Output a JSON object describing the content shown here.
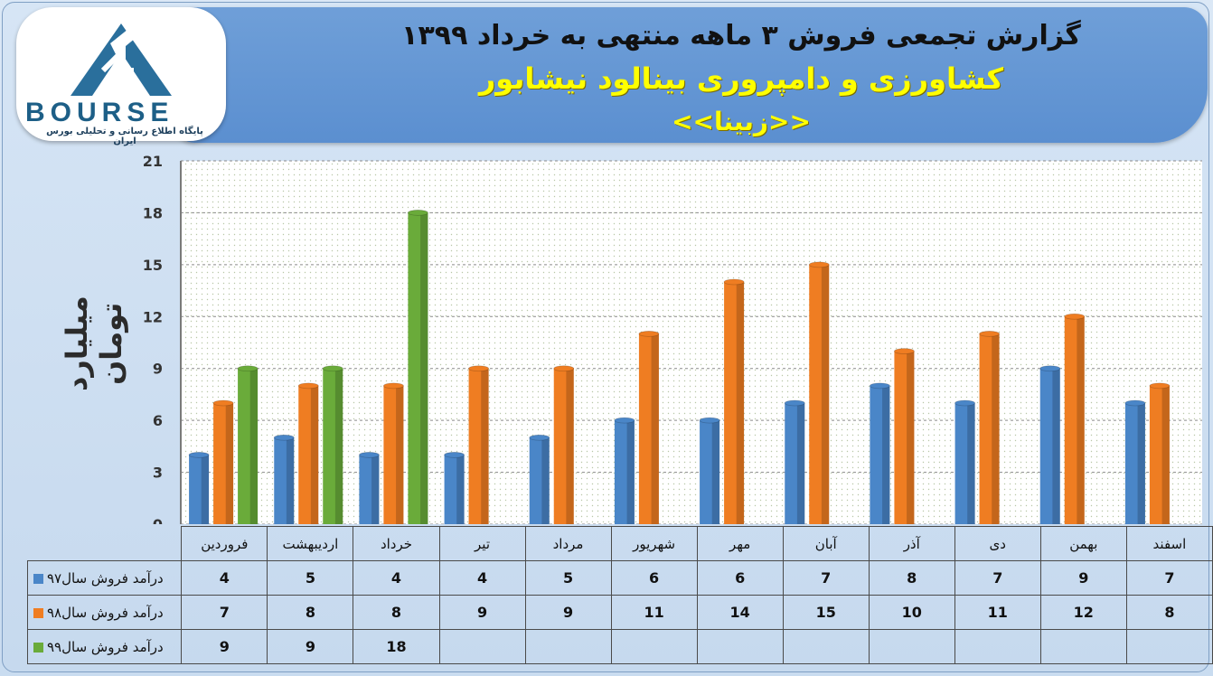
{
  "header": {
    "title_line1": "گزارش تجمعی فروش ۳ ماهه منتهی به خرداد ۱۳۹۹",
    "title_line2": "کشاورزی و دامپروری بینالود نیشابور",
    "title_line3": "<<زبینا>>"
  },
  "logo": {
    "word": "BOURSE",
    "subtitle": "پایگاه اطلاع رسانی و تحلیلی بورس ایران"
  },
  "colors": {
    "series97": "#4a86c8",
    "series98": "#ef7d22",
    "series99": "#6aab3a"
  },
  "chart_data": {
    "type": "bar",
    "ylabel": "میلیارد تومان",
    "ylim": [
      0,
      21
    ],
    "yticks": [
      "0",
      "3",
      "6",
      "9",
      "12",
      "15",
      "18",
      "21"
    ],
    "categories": [
      "فروردین",
      "اردیبهشت",
      "خرداد",
      "تیر",
      "مرداد",
      "شهریور",
      "مهر",
      "آبان",
      "آذر",
      "دی",
      "بهمن",
      "اسفند"
    ],
    "series": [
      {
        "name": "درآمد فروش سال۹۷",
        "values": [
          4,
          5,
          4,
          4,
          5,
          6,
          6,
          7,
          8,
          7,
          9,
          7
        ]
      },
      {
        "name": "درآمد فروش سال۹۸",
        "values": [
          7,
          8,
          8,
          9,
          9,
          11,
          14,
          15,
          10,
          11,
          12,
          8
        ]
      },
      {
        "name": "درآمد فروش سال۹۹",
        "values": [
          9,
          9,
          18,
          null,
          null,
          null,
          null,
          null,
          null,
          null,
          null,
          null
        ]
      }
    ]
  }
}
